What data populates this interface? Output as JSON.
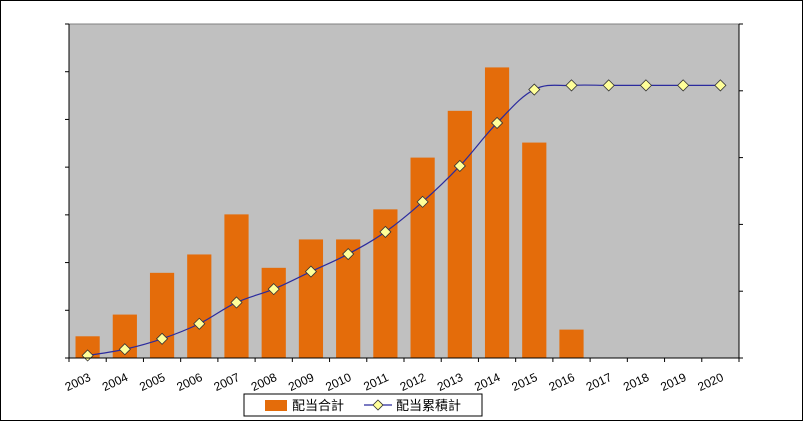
{
  "chart_data": {
    "type": "bar",
    "categories": [
      "2003",
      "2004",
      "2005",
      "2006",
      "2007",
      "2008",
      "2009",
      "2010",
      "2011",
      "2012",
      "2013",
      "2014",
      "2015",
      "2016",
      "2017",
      "2018",
      "2019",
      "2020"
    ],
    "series": [
      {
        "name": "配当合計",
        "type": "bar",
        "axis": "left",
        "color": "#E46C0A",
        "values": [
          6.5,
          13,
          25.5,
          31,
          43,
          27,
          35.5,
          35.5,
          44.5,
          60,
          74,
          87,
          64.5,
          8.5,
          null,
          null,
          null,
          null
        ]
      },
      {
        "name": "配当累積計",
        "type": "line",
        "axis": "right",
        "line_color": "#2B2B9E",
        "marker": "diamond",
        "marker_color": "#FFFF99",
        "values": [
          0.6,
          2.1,
          4.6,
          8.2,
          13.3,
          16.5,
          20.7,
          24.9,
          30.2,
          37.4,
          46.0,
          56.3,
          64.3,
          65.3,
          65.3,
          65.3,
          65.3,
          65.3
        ]
      }
    ],
    "ylim_left": [
      0,
      100
    ],
    "ylim_right": [
      0,
      80
    ],
    "grid": false,
    "plot_background": "#C0C0C0",
    "legend_position": "bottom",
    "title": "",
    "xlabel": "",
    "ylabel": ""
  }
}
